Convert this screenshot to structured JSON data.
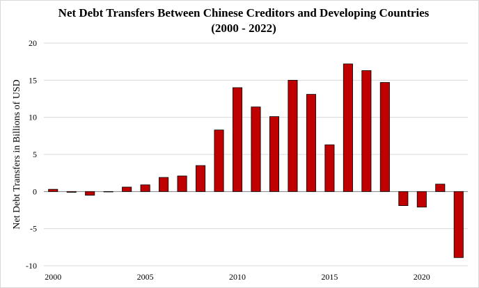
{
  "chart_data": {
    "type": "bar",
    "title_line1": "Net Debt Transfers Between Chinese Creditors and Developing Countries",
    "title_line2": "(2000 - 2022)",
    "xlabel": "",
    "ylabel": "Net Debt Transfers in Billions of USD",
    "ylim": [
      -10,
      20
    ],
    "yticks": [
      -10,
      -5,
      0,
      5,
      10,
      15,
      20
    ],
    "xticks": [
      2000,
      2005,
      2010,
      2015,
      2020
    ],
    "grid": true,
    "bar_color": "#c00000",
    "categories": [
      2000,
      2001,
      2002,
      2003,
      2004,
      2005,
      2006,
      2007,
      2008,
      2009,
      2010,
      2011,
      2012,
      2013,
      2014,
      2015,
      2016,
      2017,
      2018,
      2019,
      2020,
      2021,
      2022
    ],
    "values": [
      0.3,
      -0.1,
      -0.5,
      -0.05,
      0.6,
      0.9,
      1.9,
      2.1,
      3.5,
      8.3,
      14.0,
      11.4,
      10.1,
      15.0,
      13.1,
      6.3,
      17.2,
      16.3,
      14.7,
      -1.9,
      -2.1,
      1.0,
      -8.9
    ]
  }
}
